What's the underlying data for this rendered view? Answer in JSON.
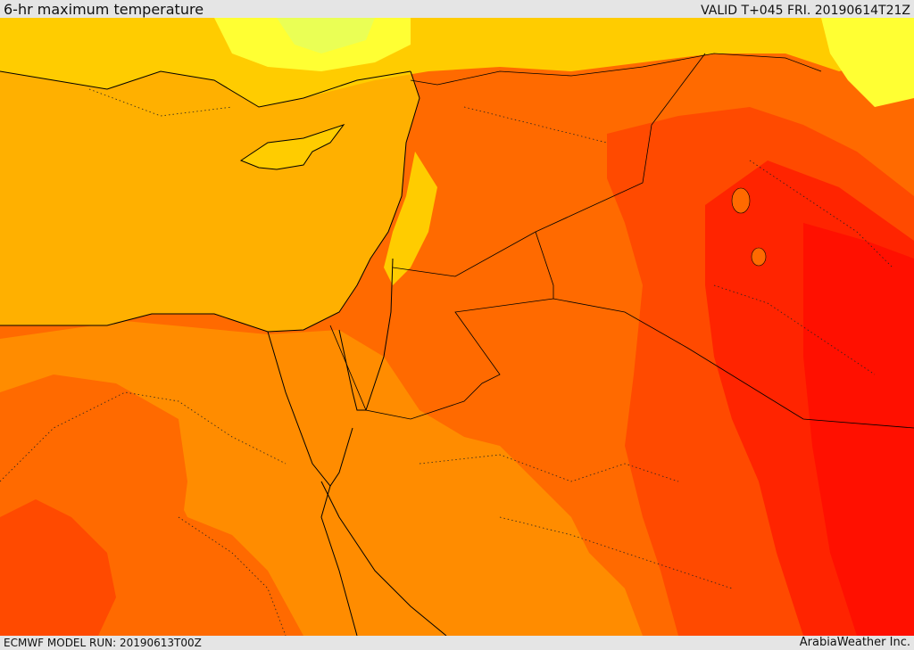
{
  "header": {
    "title": "6-hr maximum temperature",
    "valid": "VALID T+045 FRI. 20190614T21Z"
  },
  "footer": {
    "model_run": "ECMWF MODEL RUN: 20190613T00Z",
    "credit": "ArabiaWeather Inc."
  },
  "palette": {
    "sea": "#ffb000",
    "hot1": "#ff8c00",
    "hot2": "#ff6a00",
    "hot3": "#ff4a00",
    "hot4": "#ff2400",
    "hot5": "#ff1000",
    "mild": "#ffcc00",
    "cool": "#ffff33",
    "cooler": "#eaff55"
  }
}
